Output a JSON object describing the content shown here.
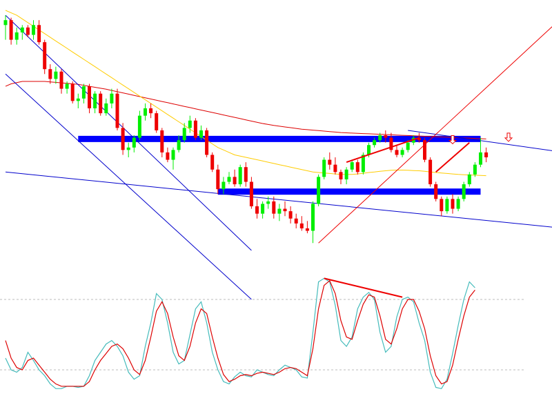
{
  "chart_data": [
    {
      "type": "candlestick",
      "title": "",
      "colors": {
        "up": "#00ee00",
        "down": "#ee0000",
        "ma_fast": "#ffcc00",
        "ma_slow": "#dd0000",
        "channel": "#0000cc",
        "zone": "#0000ff",
        "trend_line": "#ee0000",
        "arrow": "#ee0000"
      },
      "price_range": [
        0,
        100
      ],
      "candles": [
        {
          "o": 94,
          "h": 98,
          "l": 88,
          "c": 96
        },
        {
          "o": 96,
          "h": 97,
          "l": 86,
          "c": 88
        },
        {
          "o": 88,
          "h": 93,
          "l": 86,
          "c": 91
        },
        {
          "o": 91,
          "h": 94,
          "l": 88,
          "c": 93
        },
        {
          "o": 93,
          "h": 94,
          "l": 89,
          "c": 90
        },
        {
          "o": 90,
          "h": 96,
          "l": 88,
          "c": 94
        },
        {
          "o": 94,
          "h": 96,
          "l": 86,
          "c": 87
        },
        {
          "o": 87,
          "h": 88,
          "l": 74,
          "c": 76
        },
        {
          "o": 76,
          "h": 78,
          "l": 70,
          "c": 72
        },
        {
          "o": 72,
          "h": 77,
          "l": 70,
          "c": 75
        },
        {
          "o": 75,
          "h": 76,
          "l": 66,
          "c": 68
        },
        {
          "o": 68,
          "h": 71,
          "l": 66,
          "c": 70
        },
        {
          "o": 70,
          "h": 71,
          "l": 62,
          "c": 63
        },
        {
          "o": 63,
          "h": 66,
          "l": 60,
          "c": 64
        },
        {
          "o": 64,
          "h": 70,
          "l": 62,
          "c": 69
        },
        {
          "o": 69,
          "h": 70,
          "l": 58,
          "c": 60
        },
        {
          "o": 60,
          "h": 67,
          "l": 58,
          "c": 66
        },
        {
          "o": 66,
          "h": 67,
          "l": 57,
          "c": 58
        },
        {
          "o": 58,
          "h": 64,
          "l": 57,
          "c": 62
        },
        {
          "o": 62,
          "h": 68,
          "l": 60,
          "c": 66
        },
        {
          "o": 66,
          "h": 68,
          "l": 51,
          "c": 52
        },
        {
          "o": 52,
          "h": 54,
          "l": 41,
          "c": 43
        },
        {
          "o": 43,
          "h": 46,
          "l": 40,
          "c": 44
        },
        {
          "o": 44,
          "h": 49,
          "l": 42,
          "c": 48
        },
        {
          "o": 48,
          "h": 59,
          "l": 47,
          "c": 57
        },
        {
          "o": 57,
          "h": 62,
          "l": 55,
          "c": 60
        },
        {
          "o": 60,
          "h": 62,
          "l": 56,
          "c": 58
        },
        {
          "o": 58,
          "h": 59,
          "l": 50,
          "c": 51
        },
        {
          "o": 51,
          "h": 52,
          "l": 40,
          "c": 42
        },
        {
          "o": 42,
          "h": 44,
          "l": 38,
          "c": 39
        },
        {
          "o": 39,
          "h": 44,
          "l": 35,
          "c": 43
        },
        {
          "o": 43,
          "h": 49,
          "l": 42,
          "c": 47
        },
        {
          "o": 47,
          "h": 54,
          "l": 46,
          "c": 52
        },
        {
          "o": 52,
          "h": 57,
          "l": 50,
          "c": 55
        },
        {
          "o": 55,
          "h": 56,
          "l": 47,
          "c": 48
        },
        {
          "o": 48,
          "h": 53,
          "l": 47,
          "c": 51
        },
        {
          "o": 51,
          "h": 52,
          "l": 40,
          "c": 41
        },
        {
          "o": 41,
          "h": 42,
          "l": 34,
          "c": 35
        },
        {
          "o": 35,
          "h": 37,
          "l": 25,
          "c": 27
        },
        {
          "o": 27,
          "h": 32,
          "l": 25,
          "c": 30
        },
        {
          "o": 30,
          "h": 34,
          "l": 29,
          "c": 32
        },
        {
          "o": 32,
          "h": 35,
          "l": 28,
          "c": 29
        },
        {
          "o": 29,
          "h": 37,
          "l": 28,
          "c": 36
        },
        {
          "o": 36,
          "h": 38,
          "l": 28,
          "c": 30
        },
        {
          "o": 30,
          "h": 32,
          "l": 19,
          "c": 20
        },
        {
          "o": 20,
          "h": 23,
          "l": 15,
          "c": 17
        },
        {
          "o": 17,
          "h": 22,
          "l": 15,
          "c": 21
        },
        {
          "o": 21,
          "h": 24,
          "l": 19,
          "c": 22
        },
        {
          "o": 22,
          "h": 24,
          "l": 15,
          "c": 17
        },
        {
          "o": 17,
          "h": 21,
          "l": 14,
          "c": 19
        },
        {
          "o": 19,
          "h": 22,
          "l": 16,
          "c": 18
        },
        {
          "o": 18,
          "h": 20,
          "l": 13,
          "c": 15
        },
        {
          "o": 15,
          "h": 17,
          "l": 11,
          "c": 13
        },
        {
          "o": 13,
          "h": 16,
          "l": 10,
          "c": 11
        },
        {
          "o": 11,
          "h": 14,
          "l": 9,
          "c": 10
        },
        {
          "o": 10,
          "h": 22,
          "l": 5,
          "c": 21
        },
        {
          "o": 21,
          "h": 33,
          "l": 20,
          "c": 32
        },
        {
          "o": 32,
          "h": 40,
          "l": 31,
          "c": 39
        },
        {
          "o": 39,
          "h": 42,
          "l": 35,
          "c": 37
        },
        {
          "o": 37,
          "h": 40,
          "l": 33,
          "c": 34
        },
        {
          "o": 34,
          "h": 35,
          "l": 29,
          "c": 31
        },
        {
          "o": 31,
          "h": 36,
          "l": 29,
          "c": 35
        },
        {
          "o": 35,
          "h": 39,
          "l": 34,
          "c": 38
        },
        {
          "o": 38,
          "h": 39,
          "l": 33,
          "c": 34
        },
        {
          "o": 34,
          "h": 42,
          "l": 33,
          "c": 41
        },
        {
          "o": 41,
          "h": 46,
          "l": 40,
          "c": 45
        },
        {
          "o": 45,
          "h": 48,
          "l": 44,
          "c": 47
        },
        {
          "o": 47,
          "h": 50,
          "l": 46,
          "c": 49
        },
        {
          "o": 49,
          "h": 51,
          "l": 46,
          "c": 48
        },
        {
          "o": 48,
          "h": 50,
          "l": 42,
          "c": 43
        },
        {
          "o": 43,
          "h": 45,
          "l": 40,
          "c": 41
        },
        {
          "o": 41,
          "h": 44,
          "l": 40,
          "c": 43
        },
        {
          "o": 43,
          "h": 47,
          "l": 42,
          "c": 46
        },
        {
          "o": 46,
          "h": 49,
          "l": 45,
          "c": 48
        },
        {
          "o": 48,
          "h": 50,
          "l": 46,
          "c": 47
        },
        {
          "o": 47,
          "h": 48,
          "l": 38,
          "c": 39
        },
        {
          "o": 39,
          "h": 40,
          "l": 28,
          "c": 29
        },
        {
          "o": 29,
          "h": 30,
          "l": 22,
          "c": 23
        },
        {
          "o": 23,
          "h": 24,
          "l": 16,
          "c": 18
        },
        {
          "o": 18,
          "h": 24,
          "l": 17,
          "c": 23
        },
        {
          "o": 23,
          "h": 25,
          "l": 17,
          "c": 19
        },
        {
          "o": 19,
          "h": 24,
          "l": 18,
          "c": 23
        },
        {
          "o": 23,
          "h": 30,
          "l": 22,
          "c": 29
        },
        {
          "o": 29,
          "h": 34,
          "l": 28,
          "c": 33
        },
        {
          "o": 33,
          "h": 38,
          "l": 32,
          "c": 37
        },
        {
          "o": 37,
          "h": 48,
          "l": 36,
          "c": 42
        },
        {
          "o": 42,
          "h": 44,
          "l": 38,
          "c": 40
        }
      ],
      "ma_fast_price": [
        100,
        99,
        98,
        96.5,
        95,
        93.5,
        92,
        90.5,
        89,
        87.5,
        86,
        84.5,
        83,
        81.5,
        80,
        78.5,
        77,
        75.5,
        74,
        72.5,
        71,
        69.5,
        68,
        66.5,
        65,
        63.5,
        62,
        60.5,
        59,
        57.5,
        56,
        54.5,
        53,
        51.5,
        50,
        48.5,
        47,
        45.5,
        44,
        43,
        42,
        41,
        40.5,
        40,
        39.5,
        39,
        38.5,
        38,
        37.5,
        37,
        36.5,
        36,
        35.5,
        35,
        34.5,
        34,
        33.8,
        33.6,
        33.4,
        33.2,
        33,
        33,
        33,
        33.2,
        33.5,
        33.8,
        34,
        34.3,
        34.5,
        34.7,
        34.8,
        34.8,
        34.7,
        34.6,
        34.5,
        34.3,
        34,
        33.8,
        33.6,
        33.4,
        33.2,
        33,
        32.9,
        32.8,
        32.7,
        32.6,
        32.5
      ],
      "ma_slow_price": [
        69,
        70,
        70.5,
        71,
        71,
        71,
        71,
        71,
        70.8,
        70.6,
        70.4,
        70.2,
        70,
        69.8,
        69.4,
        69,
        68.6,
        68.2,
        67.8,
        67.3,
        66.8,
        66.3,
        65.8,
        65.3,
        64.8,
        64.3,
        63.8,
        63.3,
        62.8,
        62.3,
        61.8,
        61.3,
        60.8,
        60.3,
        59.8,
        59.3,
        58.8,
        58.3,
        57.8,
        57.3,
        56.8,
        56.3,
        55.8,
        55.3,
        54.8,
        54.3,
        53.8,
        53.4,
        53,
        52.7,
        52.4,
        52.1,
        51.8,
        51.5,
        51.3,
        51.1,
        50.9,
        50.7,
        50.5,
        50.3,
        50.1,
        50,
        49.9,
        49.8,
        49.7,
        49.6,
        49.5,
        49.4,
        49.3,
        49.2,
        49.1,
        49,
        48.9,
        48.8,
        48.7,
        48.6,
        48.5,
        48.4,
        48.3,
        48.2,
        48.1,
        48,
        47.9,
        47.8,
        47.7,
        47.6,
        47.5
      ],
      "zones": [
        {
          "x_from_bar": 13,
          "x_to_bar": 85,
          "price": 47.5
        },
        {
          "x_from_bar": 38,
          "x_to_bar": 85,
          "price": 26
        }
      ],
      "channel_lines": [
        {
          "from": {
            "bar": 0,
            "price": 98
          },
          "to": {
            "bar": 44,
            "price": 2
          }
        },
        {
          "from": {
            "bar": 0,
            "price": 74
          },
          "to": {
            "bar": 44,
            "price": -18
          }
        },
        {
          "from": {
            "bar": 0,
            "price": 34
          },
          "to": {
            "bar": 100,
            "price": 11
          }
        },
        {
          "from": {
            "bar": 72,
            "price": 51
          },
          "to": {
            "bar": 100,
            "price": 42
          }
        }
      ],
      "trend_lines": [
        {
          "from": {
            "bar": 56,
            "price": 5
          },
          "to": {
            "bar": 100,
            "price": 98
          }
        },
        {
          "from": {
            "bar": 61,
            "price": 38
          },
          "to": {
            "bar": 74,
            "price": 48
          }
        },
        {
          "from": {
            "bar": 77,
            "price": 34
          },
          "to": {
            "bar": 83,
            "price": 46
          }
        }
      ],
      "arrows": [
        {
          "bar": 80,
          "price": 45.5
        },
        {
          "bar": 90,
          "price": 46.5
        }
      ]
    },
    {
      "type": "line",
      "title": "",
      "range": [
        0,
        100
      ],
      "levels": [
        80,
        20
      ],
      "colors": {
        "k": "#44bbbb",
        "d": "#dd0000",
        "level": "#bbbbbb",
        "divergence": "#ee0000"
      },
      "series": [
        {
          "values": [
            30,
            20,
            18,
            22,
            35,
            28,
            20,
            15,
            8,
            4,
            4,
            6,
            6,
            5,
            6,
            15,
            28,
            35,
            42,
            45,
            40,
            32,
            18,
            12,
            15,
            40,
            60,
            85,
            80,
            60,
            35,
            25,
            28,
            50,
            72,
            78,
            60,
            35,
            20,
            10,
            8,
            14,
            18,
            15,
            14,
            20,
            18,
            16,
            15,
            20,
            24,
            22,
            20,
            14,
            13,
            52,
            95,
            98,
            95,
            75,
            45,
            40,
            48,
            72,
            82,
            86,
            80,
            52,
            35,
            40,
            65,
            80,
            82,
            78,
            60,
            45,
            18,
            5,
            4,
            12,
            34,
            58,
            80,
            95,
            90
          ]
        },
        {
          "values": [
            45,
            30,
            22,
            20,
            28,
            30,
            24,
            18,
            12,
            8,
            6,
            6,
            6,
            6,
            6,
            10,
            20,
            28,
            34,
            40,
            42,
            38,
            30,
            20,
            16,
            28,
            48,
            70,
            78,
            68,
            48,
            32,
            28,
            40,
            60,
            72,
            68,
            48,
            30,
            16,
            10,
            12,
            15,
            16,
            15,
            17,
            18,
            17,
            16,
            18,
            21,
            22,
            21,
            18,
            15,
            38,
            72,
            92,
            96,
            85,
            62,
            48,
            46,
            62,
            76,
            84,
            82,
            66,
            46,
            42,
            55,
            72,
            80,
            80,
            70,
            55,
            32,
            15,
            8,
            10,
            24,
            46,
            66,
            82,
            88
          ]
        }
      ],
      "divergence_line": {
        "from": {
          "index": 57,
          "value": 98
        },
        "to": {
          "index": 71,
          "value": 82
        }
      }
    }
  ]
}
